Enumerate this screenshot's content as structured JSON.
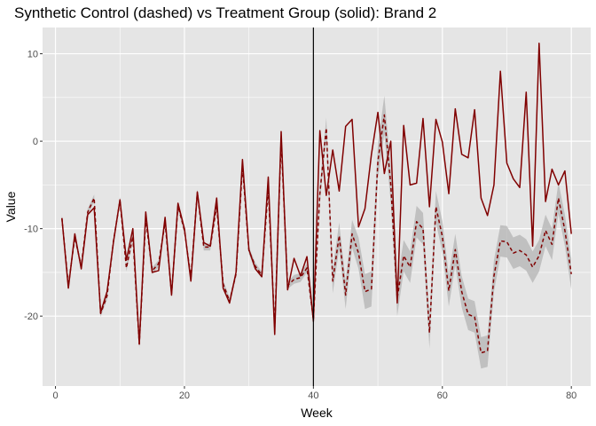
{
  "chart_data": {
    "type": "line",
    "title": "Synthetic Control (dashed) vs Treatment Group (solid): Brand 2",
    "xlabel": "Week",
    "ylabel": "Value",
    "xlim": [
      -2,
      83
    ],
    "ylim": [
      -28,
      13
    ],
    "x_ticks": [
      0,
      20,
      40,
      60,
      80
    ],
    "y_ticks": [
      -20,
      -10,
      0,
      10
    ],
    "grid": true,
    "legend": "none",
    "vline_x": 40,
    "colors": {
      "panel": "#e5e5e5",
      "grid": "#ffffff",
      "series": "#800000",
      "ribbon": "#b3b3b3",
      "vline": "#000000"
    },
    "x": [
      1,
      2,
      3,
      4,
      5,
      6,
      7,
      8,
      9,
      10,
      11,
      12,
      13,
      14,
      15,
      16,
      17,
      18,
      19,
      20,
      21,
      22,
      23,
      24,
      25,
      26,
      27,
      28,
      29,
      30,
      31,
      32,
      33,
      34,
      35,
      36,
      37,
      38,
      39,
      40,
      41,
      42,
      43,
      44,
      45,
      46,
      47,
      48,
      49,
      50,
      51,
      52,
      53,
      54,
      55,
      56,
      57,
      58,
      59,
      60,
      61,
      62,
      63,
      64,
      65,
      66,
      67,
      68,
      69,
      70,
      71,
      72,
      73,
      74,
      75,
      76,
      77,
      78,
      79,
      80
    ],
    "series": [
      {
        "style": "solid",
        "values": [
          -8.8,
          -16.8,
          -10.6,
          -14.6,
          -8.4,
          -7.6,
          -19.6,
          -17.2,
          -11.5,
          -6.7,
          -13.6,
          -10.0,
          -23.2,
          -8.1,
          -15.0,
          -14.8,
          -8.7,
          -17.6,
          -7.1,
          -10.0,
          -16.0,
          -5.8,
          -11.6,
          -12.0,
          -6.5,
          -16.8,
          -18.5,
          -15.0,
          -2.1,
          -12.4,
          -14.6,
          -15.5,
          -4.1,
          -22.1,
          1.1,
          -17.0,
          -13.4,
          -15.4,
          -13.2,
          -20.6,
          1.2,
          -6.2,
          -1.0,
          -5.7,
          1.7,
          2.5,
          -9.8,
          -7.7,
          -1.5,
          3.3,
          -3.7,
          0.0,
          -18.5,
          1.8,
          -5.0,
          -4.8,
          2.6,
          -7.5,
          2.5,
          -0.1,
          -6.0,
          3.7,
          -1.5,
          -1.9,
          3.6,
          -6.5,
          -8.5,
          -5.0,
          8.0,
          -2.5,
          -4.3,
          -5.3,
          5.6,
          -12.0,
          11.2,
          -6.9,
          -3.2,
          -5.0,
          -3.4,
          -10.6
        ]
      },
      {
        "style": "dashed",
        "values": [
          -8.8,
          -16.5,
          -11.0,
          -14.3,
          -8.1,
          -6.5,
          -19.7,
          -17.7,
          -11.4,
          -6.8,
          -14.5,
          -10.9,
          -23.2,
          -8.9,
          -14.8,
          -14.0,
          -9.3,
          -17.4,
          -7.4,
          -10.2,
          -15.6,
          -5.9,
          -12.1,
          -12.1,
          -7.4,
          -16.3,
          -18.3,
          -15.2,
          -2.9,
          -12.5,
          -14.3,
          -15.3,
          -5.4,
          -21.3,
          0.2,
          -16.5,
          -15.8,
          -15.6,
          -14.5,
          -20.4,
          -6.0,
          1.5,
          -16.0,
          -10.8,
          -17.6,
          -10.6,
          -12.8,
          -17.2,
          -16.9,
          -2.3,
          3.0,
          -5.0,
          -18.0,
          -13.1,
          -14.4,
          -9.2,
          -10.0,
          -21.9,
          -7.5,
          -10.9,
          -17.1,
          -12.4,
          -17.2,
          -19.8,
          -20.1,
          -24.2,
          -24.0,
          -15.4,
          -11.4,
          -11.5,
          -12.8,
          -12.5,
          -13.0,
          -14.4,
          -13.1,
          -10.2,
          -11.8,
          -6.5,
          -10.2,
          -15.2
        ]
      }
    ],
    "ribbon_halfwidth": [
      0.4,
      0.4,
      0.4,
      0.4,
      0.4,
      0.4,
      0.4,
      0.4,
      0.4,
      0.4,
      0.4,
      0.4,
      0.5,
      0.4,
      0.4,
      0.4,
      0.4,
      0.4,
      0.4,
      0.4,
      0.4,
      0.4,
      0.4,
      0.4,
      0.4,
      0.4,
      0.4,
      0.4,
      0.4,
      0.4,
      0.4,
      0.4,
      0.4,
      0.4,
      0.4,
      0.4,
      0.5,
      0.5,
      0.5,
      0.6,
      1.0,
      1.2,
      1.4,
      1.5,
      1.6,
      1.6,
      1.8,
      2.0,
      2.0,
      2.0,
      2.2,
      2.0,
      2.0,
      1.8,
      1.8,
      1.8,
      1.8,
      1.8,
      1.8,
      1.8,
      1.8,
      1.8,
      1.8,
      1.8,
      1.8,
      1.8,
      1.8,
      1.8,
      1.8,
      1.8,
      1.8,
      1.8,
      1.8,
      1.8,
      1.8,
      1.8,
      1.8,
      1.8,
      1.8,
      1.8
    ]
  }
}
